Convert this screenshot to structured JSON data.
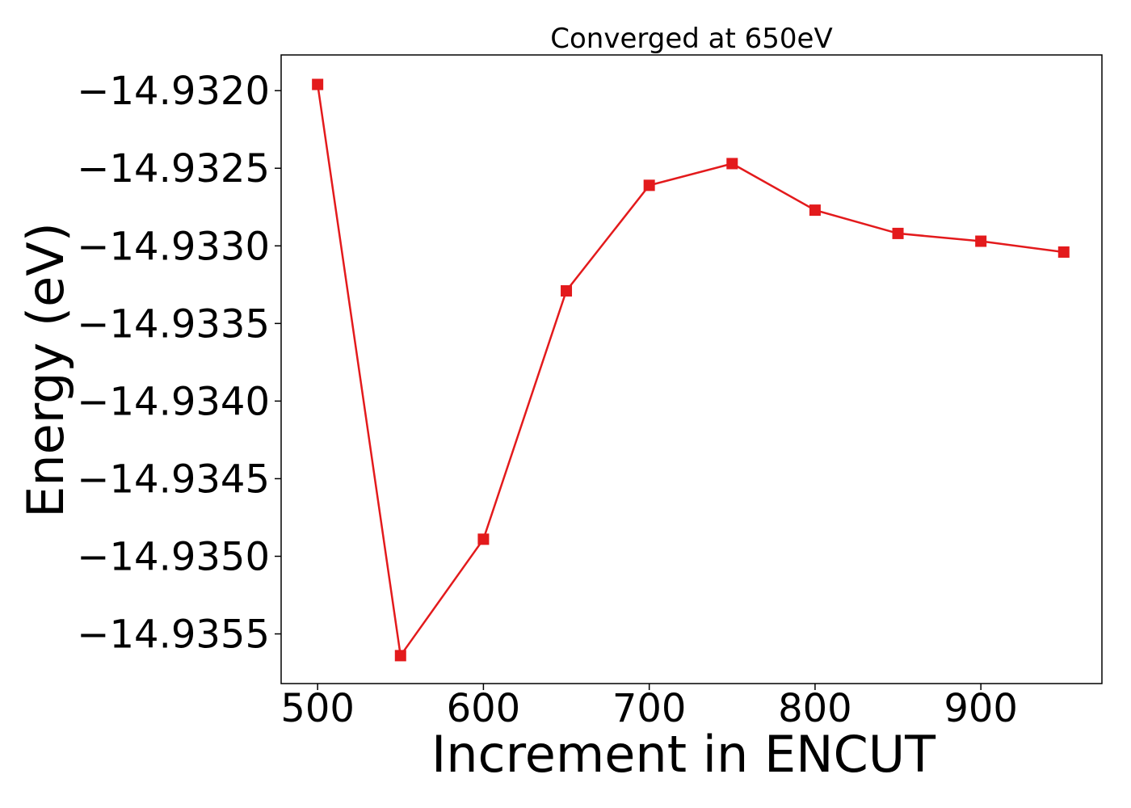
{
  "chart_data": {
    "type": "line",
    "title": "Converged at 650eV",
    "xlabel": "Increment in ENCUT",
    "ylabel": "Energy (eV)",
    "x": [
      500,
      550,
      600,
      650,
      700,
      750,
      800,
      850,
      900,
      950
    ],
    "series": [
      {
        "values": [
          -14.93196,
          -14.93564,
          -14.93489,
          -14.93329,
          -14.93261,
          -14.93247,
          -14.93277,
          -14.93292,
          -14.93297,
          -14.93304
        ],
        "color": "#e31a1c",
        "marker": "square"
      }
    ],
    "xlim": [
      478,
      973
    ],
    "ylim": [
      -14.93582,
      -14.93177
    ],
    "xticks": [
      500,
      600,
      700,
      800,
      900
    ],
    "xtick_labels": [
      "500",
      "600",
      "700",
      "800",
      "900"
    ],
    "yticks": [
      -14.932,
      -14.9325,
      -14.933,
      -14.9335,
      -14.934,
      -14.9345,
      -14.935,
      -14.9355
    ],
    "ytick_labels": [
      "−14.9320",
      "−14.9325",
      "−14.9330",
      "−14.9335",
      "−14.9340",
      "−14.9345",
      "−14.9350",
      "−14.9355"
    ],
    "grid": false,
    "legend": "none"
  }
}
